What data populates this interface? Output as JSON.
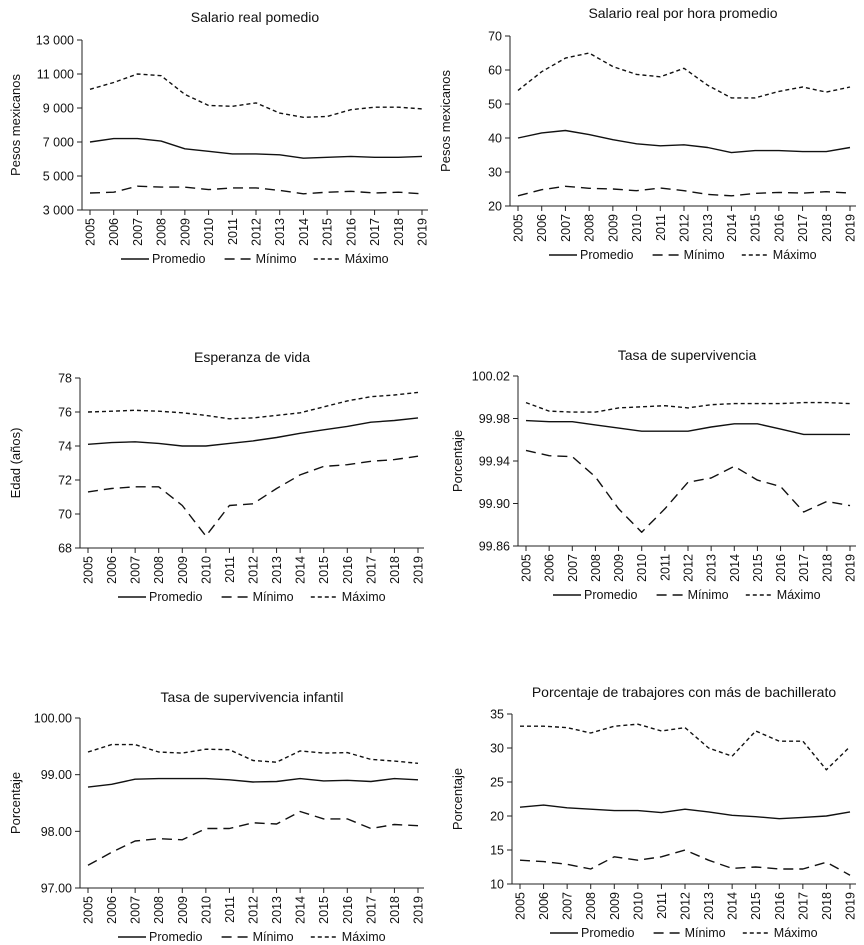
{
  "legend_labels": [
    "Promedio",
    "Mínimo",
    "Máximo"
  ],
  "chart_data": [
    {
      "type": "line",
      "title": "Salario real pomedio",
      "ylabel": "Pesos mexicanos",
      "xlabel": "",
      "x": [
        "2005",
        "2006",
        "2007",
        "2008",
        "2009",
        "2010",
        "2011",
        "2012",
        "2013",
        "2014",
        "2015",
        "2016",
        "2017",
        "2018",
        "2019"
      ],
      "ylim": [
        3000,
        13000
      ],
      "yticks": [
        3000,
        5000,
        7000,
        9000,
        11000,
        13000
      ],
      "ytick_labels": [
        "3 000",
        "5 000",
        "7 000",
        "9 000",
        "11 000",
        "13 000"
      ],
      "legend": "bottom",
      "grid": false,
      "series": [
        {
          "name": "Promedio",
          "style": "solid",
          "values": [
            7000,
            7200,
            7200,
            7050,
            6600,
            6450,
            6300,
            6300,
            6250,
            6050,
            6100,
            6150,
            6100,
            6100,
            6150
          ]
        },
        {
          "name": "Mínimo",
          "style": "dashed",
          "values": [
            4000,
            4050,
            4400,
            4350,
            4350,
            4200,
            4300,
            4300,
            4150,
            3950,
            4050,
            4100,
            4000,
            4050,
            3950
          ]
        },
        {
          "name": "Máximo",
          "style": "dotted",
          "values": [
            10100,
            10500,
            11000,
            10900,
            9800,
            9150,
            9100,
            9300,
            8700,
            8450,
            8500,
            8900,
            9050,
            9050,
            8950
          ]
        }
      ]
    },
    {
      "type": "line",
      "title": "Salario real por hora promedio",
      "ylabel": "Pesos mexicanos",
      "xlabel": "",
      "x": [
        "2005",
        "2006",
        "2007",
        "2008",
        "2009",
        "2010",
        "2011",
        "2012",
        "2013",
        "2014",
        "2015",
        "2016",
        "2017",
        "2018",
        "2019"
      ],
      "ylim": [
        20,
        70
      ],
      "yticks": [
        20,
        30,
        40,
        50,
        60,
        70
      ],
      "ytick_labels": [
        "20",
        "30",
        "40",
        "50",
        "60",
        "70"
      ],
      "legend": "bottom",
      "grid": false,
      "series": [
        {
          "name": "Promedio",
          "style": "solid",
          "values": [
            40,
            41.5,
            42.2,
            41,
            39.5,
            38.3,
            37.7,
            38,
            37.2,
            35.7,
            36.3,
            36.3,
            36,
            36,
            37.2
          ]
        },
        {
          "name": "Mínimo",
          "style": "dashed",
          "values": [
            23,
            24.8,
            25.8,
            25.2,
            25,
            24.5,
            25.3,
            24.5,
            23.4,
            23,
            23.7,
            24,
            23.8,
            24.2,
            23.8
          ]
        },
        {
          "name": "Máximo",
          "style": "dotted",
          "values": [
            54,
            59.5,
            63.5,
            65,
            61,
            58.7,
            58,
            60.5,
            55.5,
            51.8,
            51.8,
            53.7,
            55,
            53.5,
            55
          ]
        }
      ]
    },
    {
      "type": "line",
      "title": "Esperanza de vida",
      "ylabel": "Edad (años)",
      "xlabel": "",
      "x": [
        "2005",
        "2006",
        "2007",
        "2008",
        "2009",
        "2010",
        "2011",
        "2012",
        "2013",
        "2014",
        "2015",
        "2016",
        "2017",
        "2018",
        "2019"
      ],
      "ylim": [
        68,
        78
      ],
      "yticks": [
        68,
        70,
        72,
        74,
        76,
        78
      ],
      "ytick_labels": [
        "68",
        "70",
        "72",
        "74",
        "76",
        "78"
      ],
      "legend": "bottom",
      "grid": false,
      "series": [
        {
          "name": "Promedio",
          "style": "solid",
          "values": [
            74.1,
            74.2,
            74.25,
            74.15,
            74.0,
            74.0,
            74.15,
            74.3,
            74.5,
            74.75,
            74.95,
            75.15,
            75.4,
            75.5,
            75.65
          ]
        },
        {
          "name": "Mínimo",
          "style": "dashed",
          "values": [
            71.3,
            71.5,
            71.6,
            71.6,
            70.5,
            68.7,
            70.5,
            70.6,
            71.5,
            72.3,
            72.8,
            72.9,
            73.1,
            73.2,
            73.4
          ]
        },
        {
          "name": "Máximo",
          "style": "dotted",
          "values": [
            76.0,
            76.05,
            76.1,
            76.05,
            75.95,
            75.8,
            75.6,
            75.65,
            75.8,
            75.95,
            76.3,
            76.65,
            76.9,
            77.0,
            77.15
          ]
        }
      ]
    },
    {
      "type": "line",
      "title": "Tasa de supervivencia",
      "ylabel": "Porcentaje",
      "xlabel": "",
      "x": [
        "2005",
        "2006",
        "2007",
        "2008",
        "2009",
        "2010",
        "2011",
        "2012",
        "2013",
        "2014",
        "2015",
        "2016",
        "2017",
        "2018",
        "2019"
      ],
      "ylim": [
        99.86,
        100.02
      ],
      "yticks": [
        99.86,
        99.9,
        99.94,
        99.98,
        100.02
      ],
      "ytick_labels": [
        "99.86",
        "99.90",
        "99.94",
        "99.98",
        "100.02"
      ],
      "legend": "bottom",
      "grid": false,
      "series": [
        {
          "name": "Promedio",
          "style": "solid",
          "values": [
            99.978,
            99.977,
            99.977,
            99.974,
            99.971,
            99.968,
            99.968,
            99.968,
            99.972,
            99.975,
            99.975,
            99.97,
            99.965,
            99.965,
            99.965
          ]
        },
        {
          "name": "Mínimo",
          "style": "dashed",
          "values": [
            99.95,
            99.945,
            99.944,
            99.925,
            99.895,
            99.873,
            99.895,
            99.92,
            99.924,
            99.935,
            99.922,
            99.916,
            99.892,
            99.902,
            99.898
          ]
        },
        {
          "name": "Máximo",
          "style": "dotted",
          "values": [
            99.995,
            99.987,
            99.986,
            99.986,
            99.99,
            99.991,
            99.992,
            99.99,
            99.993,
            99.994,
            99.994,
            99.994,
            99.995,
            99.995,
            99.994
          ]
        }
      ]
    },
    {
      "type": "line",
      "title": "Tasa de supervivencia infantil",
      "ylabel": "Porcentaje",
      "xlabel": "",
      "x": [
        "2005",
        "2006",
        "2007",
        "2008",
        "2009",
        "2010",
        "2011",
        "2012",
        "2013",
        "2014",
        "2015",
        "2016",
        "2017",
        "2018",
        "2019"
      ],
      "ylim": [
        97,
        100
      ],
      "yticks": [
        97,
        98,
        99,
        100
      ],
      "ytick_labels": [
        "97.00",
        "98.00",
        "99.00",
        "100.00"
      ],
      "legend": "bottom",
      "grid": false,
      "series": [
        {
          "name": "Promedio",
          "style": "solid",
          "values": [
            98.78,
            98.83,
            98.92,
            98.93,
            98.93,
            98.93,
            98.91,
            98.87,
            98.88,
            98.93,
            98.89,
            98.9,
            98.88,
            98.93,
            98.91
          ]
        },
        {
          "name": "Mínimo",
          "style": "dashed",
          "values": [
            97.4,
            97.63,
            97.83,
            97.87,
            97.85,
            98.05,
            98.05,
            98.15,
            98.13,
            98.35,
            98.22,
            98.22,
            98.05,
            98.12,
            98.1
          ]
        },
        {
          "name": "Máximo",
          "style": "dotted",
          "values": [
            99.4,
            99.53,
            99.53,
            99.4,
            99.38,
            99.45,
            99.44,
            99.25,
            99.22,
            99.42,
            99.38,
            99.39,
            99.27,
            99.24,
            99.2
          ]
        }
      ]
    },
    {
      "type": "line",
      "title": "Porcentaje de trabajores con más de bachillerato",
      "ylabel": "Porcentaje",
      "xlabel": "",
      "x": [
        "2005",
        "2006",
        "2007",
        "2008",
        "2009",
        "2010",
        "2011",
        "2012",
        "2013",
        "2014",
        "2015",
        "2016",
        "2017",
        "2018",
        "2019"
      ],
      "ylim": [
        10,
        35
      ],
      "yticks": [
        10,
        15,
        20,
        25,
        30,
        35
      ],
      "ytick_labels": [
        "10",
        "15",
        "20",
        "25",
        "30",
        "35"
      ],
      "legend": "bottom",
      "grid": false,
      "series": [
        {
          "name": "Promedio",
          "style": "solid",
          "values": [
            21.3,
            21.6,
            21.2,
            21.0,
            20.8,
            20.8,
            20.5,
            21.0,
            20.6,
            20.1,
            19.9,
            19.6,
            19.8,
            20.0,
            20.6
          ]
        },
        {
          "name": "Mínimo",
          "style": "dashed",
          "values": [
            13.5,
            13.3,
            12.9,
            12.2,
            14.0,
            13.5,
            14.0,
            15.0,
            13.5,
            12.3,
            12.5,
            12.2,
            12.2,
            13.2,
            11.3
          ]
        },
        {
          "name": "Máximo",
          "style": "dotted",
          "values": [
            33.2,
            33.2,
            33.0,
            32.2,
            33.2,
            33.5,
            32.5,
            33.0,
            30.0,
            28.8,
            32.5,
            31.0,
            31.0,
            26.8,
            30.2
          ]
        }
      ]
    }
  ]
}
